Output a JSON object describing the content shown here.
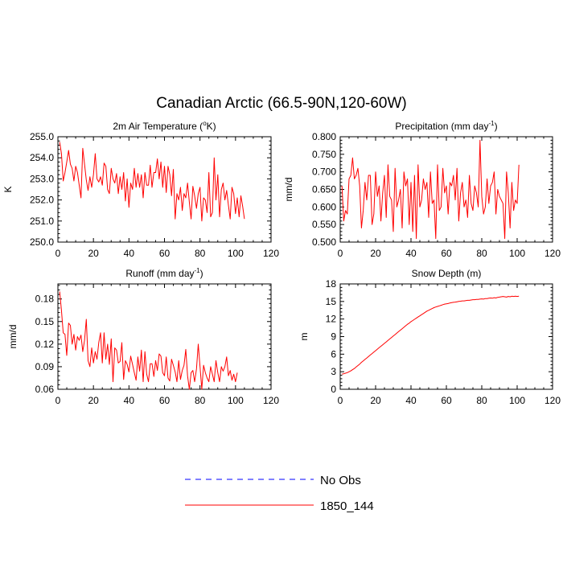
{
  "page_title": "Canadian Arctic (66.5-90N,120-60W)",
  "legend": [
    {
      "label": "No Obs",
      "color": "#0000ff",
      "dashed": true
    },
    {
      "label": "1850_144",
      "color": "#ff0000",
      "dashed": false
    }
  ],
  "chart_data": [
    {
      "type": "line",
      "id": "t2m",
      "title_main": "2m Air Temperature (",
      "title_sup": "o",
      "title_tail": "K)",
      "ylabel": "K",
      "xlim": [
        0,
        120
      ],
      "ylim": [
        250,
        255
      ],
      "xticks": [
        "0",
        "20",
        "40",
        "60",
        "80",
        "100",
        "120"
      ],
      "yticks": [
        "250.0",
        "251.0",
        "252.0",
        "253.0",
        "254.0",
        "255.0"
      ],
      "series": [
        {
          "name": "1850_144",
          "color": "#ff0000",
          "values": [
            254.75,
            254.2,
            252.9,
            253.3,
            253.8,
            254.35,
            253.7,
            253.5,
            252.9,
            253.6,
            253.3,
            252.7,
            252.1,
            254.45,
            253.7,
            252.95,
            252.45,
            253.1,
            252.6,
            253.2,
            254.2,
            253.0,
            252.85,
            253.1,
            252.7,
            253.75,
            253.6,
            252.5,
            252.3,
            253.5,
            253.0,
            252.8,
            253.25,
            252.3,
            253.1,
            252.5,
            253.3,
            251.95,
            253.0,
            251.65,
            252.8,
            252.5,
            253.5,
            252.6,
            253.25,
            252.6,
            253.2,
            252.1,
            253.3,
            252.7,
            252.7,
            253.65,
            252.6,
            253.3,
            253.3,
            253.95,
            253.0,
            253.8,
            252.6,
            253.6,
            252.35,
            253.6,
            253.2,
            252.2,
            253.45,
            251.1,
            252.3,
            252.0,
            252.6,
            251.5,
            252.3,
            252.1,
            252.8,
            251.9,
            251.1,
            252.65,
            252.2,
            251.6,
            252.3,
            252.6,
            251.0,
            252.1,
            252.0,
            251.4,
            253.3,
            251.2,
            251.4,
            254.0,
            252.0,
            253.2,
            251.2,
            252.5,
            252.8,
            252.0,
            252.45,
            251.75,
            251.1,
            252.6,
            252.3,
            251.35,
            252.1,
            251.2,
            252.2,
            251.7,
            251.1
          ]
        }
      ]
    },
    {
      "type": "line",
      "id": "precip",
      "title_main": "Precipitation (mm day",
      "title_sup": "-1",
      "title_tail": ")",
      "ylabel": "mm/d",
      "xlim": [
        0,
        120
      ],
      "ylim": [
        0.5,
        0.8
      ],
      "xticks": [
        "0",
        "20",
        "40",
        "60",
        "80",
        "100",
        "120"
      ],
      "yticks": [
        "0.500",
        "0.550",
        "0.600",
        "0.650",
        "0.700",
        "0.750",
        "0.800"
      ],
      "series": [
        {
          "name": "1850_144",
          "color": "#ff0000",
          "values": [
            0.66,
            0.56,
            0.59,
            0.58,
            0.68,
            0.69,
            0.74,
            0.68,
            0.69,
            0.71,
            0.66,
            0.54,
            0.59,
            0.67,
            0.62,
            0.69,
            0.69,
            0.55,
            0.58,
            0.7,
            0.63,
            0.66,
            0.56,
            0.64,
            0.69,
            0.57,
            0.72,
            0.63,
            0.62,
            0.53,
            0.71,
            0.6,
            0.62,
            0.65,
            0.54,
            0.7,
            0.66,
            0.68,
            0.55,
            0.67,
            0.53,
            0.69,
            0.51,
            0.72,
            0.6,
            0.62,
            0.68,
            0.65,
            0.67,
            0.57,
            0.7,
            0.61,
            0.62,
            0.51,
            0.72,
            0.59,
            0.6,
            0.71,
            0.64,
            0.66,
            0.58,
            0.67,
            0.66,
            0.69,
            0.62,
            0.71,
            0.56,
            0.64,
            0.67,
            0.6,
            0.62,
            0.57,
            0.69,
            0.61,
            0.59,
            0.66,
            0.64,
            0.6,
            0.79,
            0.63,
            0.58,
            0.6,
            0.68,
            0.61,
            0.66,
            0.67,
            0.7,
            0.58,
            0.65,
            0.63,
            0.62,
            0.61,
            0.51,
            0.7,
            0.64,
            0.54,
            0.67,
            0.59,
            0.62,
            0.61,
            0.72
          ]
        }
      ]
    },
    {
      "type": "line",
      "id": "runoff",
      "title_main": "Runoff (mm day",
      "title_sup": "-1",
      "title_tail": ")",
      "ylabel": "mm/d",
      "xlim": [
        0,
        120
      ],
      "ylim": [
        0.06,
        0.2
      ],
      "xticks": [
        "0",
        "20",
        "40",
        "60",
        "80",
        "100",
        "120"
      ],
      "yticks": [
        "0.06",
        "0.09",
        "0.12",
        "0.15",
        "0.18"
      ],
      "series": [
        {
          "name": "1850_144",
          "color": "#ff0000",
          "values": [
            0.19,
            0.165,
            0.135,
            0.133,
            0.105,
            0.148,
            0.145,
            0.12,
            0.133,
            0.112,
            0.13,
            0.125,
            0.132,
            0.11,
            0.125,
            0.153,
            0.098,
            0.09,
            0.115,
            0.095,
            0.11,
            0.1,
            0.122,
            0.135,
            0.095,
            0.135,
            0.1,
            0.12,
            0.093,
            0.127,
            0.07,
            0.115,
            0.112,
            0.095,
            0.097,
            0.122,
            0.073,
            0.098,
            0.093,
            0.083,
            0.104,
            0.093,
            0.082,
            0.072,
            0.103,
            0.084,
            0.112,
            0.07,
            0.11,
            0.08,
            0.07,
            0.094,
            0.094,
            0.077,
            0.098,
            0.085,
            0.107,
            0.104,
            0.082,
            0.078,
            0.103,
            0.075,
            0.071,
            0.1,
            0.092,
            0.083,
            0.07,
            0.098,
            0.073,
            0.085,
            0.092,
            0.113,
            0.078,
            0.06,
            0.082,
            0.085,
            0.07,
            0.087,
            0.12,
            0.09,
            0.06,
            0.092,
            0.082,
            0.075,
            0.07,
            0.09,
            0.08,
            0.07,
            0.098,
            0.082,
            0.07,
            0.09,
            0.084,
            0.09,
            0.103,
            0.078,
            0.085,
            0.072,
            0.08,
            0.07,
            0.082
          ]
        }
      ]
    },
    {
      "type": "line",
      "id": "snow",
      "title_main": "Snow Depth (m)",
      "title_sup": "",
      "title_tail": "",
      "ylabel": "m",
      "xlim": [
        0,
        120
      ],
      "ylim": [
        0,
        18
      ],
      "xticks": [
        "0",
        "20",
        "40",
        "60",
        "80",
        "100",
        "120"
      ],
      "yticks": [
        "0",
        "3",
        "6",
        "9",
        "12",
        "15",
        "18"
      ],
      "series": [
        {
          "name": "1850_144",
          "color": "#ff0000",
          "values": [
            2.6,
            2.65,
            2.75,
            2.85,
            3.0,
            3.15,
            3.35,
            3.55,
            3.8,
            4.05,
            4.3,
            4.6,
            4.85,
            5.1,
            5.35,
            5.6,
            5.85,
            6.1,
            6.35,
            6.6,
            6.85,
            7.1,
            7.35,
            7.6,
            7.85,
            8.1,
            8.35,
            8.6,
            8.85,
            9.1,
            9.35,
            9.6,
            9.85,
            10.1,
            10.35,
            10.6,
            10.85,
            11.1,
            11.3,
            11.55,
            11.75,
            11.95,
            12.15,
            12.35,
            12.55,
            12.75,
            12.95,
            13.15,
            13.35,
            13.5,
            13.65,
            13.8,
            13.95,
            14.05,
            14.15,
            14.25,
            14.35,
            14.45,
            14.55,
            14.6,
            14.65,
            14.75,
            14.8,
            14.85,
            14.9,
            14.95,
            15.0,
            15.05,
            15.1,
            15.1,
            15.15,
            15.2,
            15.2,
            15.25,
            15.3,
            15.3,
            15.35,
            15.35,
            15.4,
            15.45,
            15.4,
            15.5,
            15.5,
            15.55,
            15.6,
            15.55,
            15.65,
            15.6,
            15.7,
            15.75,
            15.8,
            15.85,
            15.8,
            15.75,
            15.85,
            15.8,
            15.9,
            15.85,
            15.9,
            15.85,
            15.9
          ]
        }
      ]
    }
  ]
}
